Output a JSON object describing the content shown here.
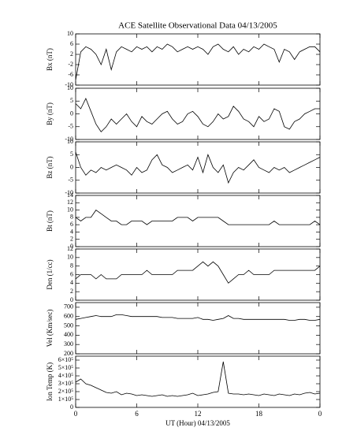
{
  "chart_data": [
    {
      "type": "line",
      "title": "ACE Satellite Observational Data   04/13/2005",
      "ylabel": "Bx (nT)",
      "color": "#000000",
      "xlim": [
        0,
        24
      ],
      "ylim": [
        -10,
        10
      ],
      "yticks": [
        -10,
        -6,
        -2,
        2,
        6,
        10
      ],
      "x": [
        0,
        0.5,
        1,
        1.5,
        2,
        2.5,
        3,
        3.5,
        4,
        4.5,
        5,
        5.5,
        6,
        6.5,
        7,
        7.5,
        8,
        8.5,
        9,
        9.5,
        10,
        10.5,
        11,
        11.5,
        12,
        12.5,
        13,
        13.5,
        14,
        14.5,
        15,
        15.5,
        16,
        16.5,
        17,
        17.5,
        18,
        18.5,
        19,
        19.5,
        20,
        20.5,
        21,
        21.5,
        22,
        22.5,
        23,
        23.5,
        24
      ],
      "values": [
        -8,
        3,
        5,
        4,
        2,
        -2,
        4,
        -4,
        3,
        5,
        4,
        3,
        5,
        4,
        5,
        3,
        5,
        4,
        6,
        5,
        3,
        4,
        5,
        4,
        5,
        4,
        2,
        5,
        6,
        4,
        3,
        5,
        2,
        4,
        3,
        5,
        4,
        6,
        5,
        4,
        -1,
        4,
        3,
        0,
        3,
        4,
        5,
        5,
        3
      ]
    },
    {
      "type": "line",
      "ylabel": "By (nT)",
      "color": "#000000",
      "xlim": [
        0,
        24
      ],
      "ylim": [
        -10,
        10
      ],
      "yticks": [
        -10,
        -5,
        0,
        5,
        10
      ],
      "x": [
        0,
        0.5,
        1,
        1.5,
        2,
        2.5,
        3,
        3.5,
        4,
        4.5,
        5,
        5.5,
        6,
        6.5,
        7,
        7.5,
        8,
        8.5,
        9,
        9.5,
        10,
        10.5,
        11,
        11.5,
        12,
        12.5,
        13,
        13.5,
        14,
        14.5,
        15,
        15.5,
        16,
        16.5,
        17,
        17.5,
        18,
        18.5,
        19,
        19.5,
        20,
        20.5,
        21,
        21.5,
        22,
        22.5,
        23,
        23.5,
        24
      ],
      "values": [
        4,
        2,
        6,
        1,
        -4,
        -7,
        -5,
        -2,
        -4,
        -2,
        0,
        -3,
        -5,
        -1,
        -3,
        -4,
        -2,
        0,
        1,
        -2,
        -4,
        -3,
        0,
        1,
        -1,
        -4,
        -5,
        -3,
        0,
        -2,
        -1,
        3,
        1,
        -2,
        -3,
        -5,
        -1,
        -3,
        -2,
        2,
        1,
        -5,
        -6,
        -3,
        -2,
        0,
        1,
        2,
        2
      ]
    },
    {
      "type": "line",
      "ylabel": "Bz (nT)",
      "color": "#000000",
      "xlim": [
        0,
        24
      ],
      "ylim": [
        -10,
        10
      ],
      "yticks": [
        -10,
        -5,
        0,
        5,
        10
      ],
      "x": [
        0,
        0.5,
        1,
        1.5,
        2,
        2.5,
        3,
        3.5,
        4,
        4.5,
        5,
        5.5,
        6,
        6.5,
        7,
        7.5,
        8,
        8.5,
        9,
        9.5,
        10,
        10.5,
        11,
        11.5,
        12,
        12.5,
        13,
        13.5,
        14,
        14.5,
        15,
        15.5,
        16,
        16.5,
        17,
        17.5,
        18,
        18.5,
        19,
        19.5,
        20,
        20.5,
        21,
        21.5,
        22,
        22.5,
        23,
        23.5,
        24
      ],
      "values": [
        6,
        0,
        -3,
        -1,
        -2,
        0,
        -1,
        0,
        1,
        0,
        -1,
        -3,
        0,
        -2,
        -1,
        3,
        5,
        1,
        0,
        -2,
        -1,
        0,
        1,
        -1,
        4,
        -2,
        5,
        0,
        -2,
        1,
        -6,
        -2,
        0,
        -1,
        1,
        3,
        0,
        -1,
        -2,
        0,
        -1,
        0,
        -2,
        -1,
        0,
        1,
        2,
        3,
        4
      ]
    },
    {
      "type": "line",
      "ylabel": "Bt (nT)",
      "color": "#000000",
      "xlim": [
        0,
        24
      ],
      "ylim": [
        0,
        14
      ],
      "yticks": [
        0,
        2,
        4,
        6,
        8,
        10,
        12,
        14
      ],
      "x": [
        0,
        0.5,
        1,
        1.5,
        2,
        2.5,
        3,
        3.5,
        4,
        4.5,
        5,
        5.5,
        6,
        6.5,
        7,
        7.5,
        8,
        8.5,
        9,
        9.5,
        10,
        10.5,
        11,
        11.5,
        12,
        12.5,
        13,
        13.5,
        14,
        14.5,
        15,
        15.5,
        16,
        16.5,
        17,
        17.5,
        18,
        18.5,
        19,
        19.5,
        20,
        20.5,
        21,
        21.5,
        22,
        22.5,
        23,
        23.5,
        24
      ],
      "values": [
        8,
        7,
        8,
        8,
        10,
        9,
        8,
        7,
        7,
        6,
        6,
        7,
        7,
        7,
        6,
        7,
        7,
        7,
        7,
        7,
        8,
        8,
        8,
        7,
        8,
        8,
        8,
        8,
        8,
        7,
        6,
        6,
        6,
        6,
        6,
        6,
        6,
        6,
        6,
        7,
        6,
        6,
        6,
        6,
        6,
        6,
        6,
        7,
        6
      ]
    },
    {
      "type": "line",
      "ylabel": "Den (1/cc)",
      "color": "#000000",
      "xlim": [
        0,
        24
      ],
      "ylim": [
        0,
        12
      ],
      "yticks": [
        0,
        2,
        4,
        6,
        8,
        10,
        12
      ],
      "x": [
        0,
        0.5,
        1,
        1.5,
        2,
        2.5,
        3,
        3.5,
        4,
        4.5,
        5,
        5.5,
        6,
        6.5,
        7,
        7.5,
        8,
        8.5,
        9,
        9.5,
        10,
        10.5,
        11,
        11.5,
        12,
        12.5,
        13,
        13.5,
        14,
        14.5,
        15,
        15.5,
        16,
        16.5,
        17,
        17.5,
        18,
        18.5,
        19,
        19.5,
        20,
        20.5,
        21,
        21.5,
        22,
        22.5,
        23,
        23.5,
        24
      ],
      "values": [
        5,
        6,
        6,
        6,
        5,
        6,
        5,
        5,
        5,
        6,
        6,
        6,
        6,
        6,
        7,
        6,
        6,
        6,
        6,
        6,
        7,
        7,
        7,
        7,
        8,
        9,
        8,
        9,
        8,
        6,
        4,
        5,
        6,
        6,
        7,
        6,
        6,
        6,
        6,
        7,
        7,
        7,
        7,
        7,
        7,
        7,
        7,
        7,
        8
      ]
    },
    {
      "type": "line",
      "ylabel": "Vel (Km/sec)",
      "color": "#000000",
      "xlim": [
        0,
        24
      ],
      "ylim": [
        200,
        750
      ],
      "yticks": [
        200,
        300,
        400,
        500,
        600,
        700
      ],
      "x": [
        0,
        0.5,
        1,
        1.5,
        2,
        2.5,
        3,
        3.5,
        4,
        4.5,
        5,
        5.5,
        6,
        6.5,
        7,
        7.5,
        8,
        8.5,
        9,
        9.5,
        10,
        10.5,
        11,
        11.5,
        12,
        12.5,
        13,
        13.5,
        14,
        14.5,
        15,
        15.5,
        16,
        16.5,
        17,
        17.5,
        18,
        18.5,
        19,
        19.5,
        20,
        20.5,
        21,
        21.5,
        22,
        22.5,
        23,
        23.5,
        24
      ],
      "values": [
        570,
        580,
        590,
        600,
        610,
        600,
        600,
        600,
        620,
        620,
        610,
        600,
        600,
        600,
        600,
        600,
        600,
        590,
        590,
        590,
        580,
        580,
        580,
        580,
        590,
        570,
        570,
        560,
        570,
        580,
        610,
        580,
        580,
        570,
        570,
        570,
        570,
        570,
        570,
        570,
        570,
        570,
        560,
        560,
        570,
        570,
        560,
        560,
        570
      ]
    },
    {
      "type": "line",
      "ylabel": "Ion Temp (K)",
      "xlabel": "UT (Hour)   04/13/2005",
      "color": "#000000",
      "xlim": [
        0,
        24
      ],
      "xticks": [
        0,
        6,
        12,
        18,
        {
          "value": 24,
          "label": "0"
        }
      ],
      "ylim": [
        0,
        650000
      ],
      "yticks": [
        0,
        {
          "value": 100000,
          "label": "1×10⁵"
        },
        {
          "value": 200000,
          "label": "2×10⁵"
        },
        {
          "value": 300000,
          "label": "3×10⁵"
        },
        {
          "value": 400000,
          "label": "4×10⁵"
        },
        {
          "value": 500000,
          "label": "5×10⁵"
        },
        {
          "value": 600000,
          "label": "6×10⁵"
        }
      ],
      "x": [
        0,
        0.5,
        1,
        1.5,
        2,
        2.5,
        3,
        3.5,
        4,
        4.5,
        5,
        5.5,
        6,
        6.5,
        7,
        7.5,
        8,
        8.5,
        9,
        9.5,
        10,
        10.5,
        11,
        11.5,
        12,
        12.5,
        13,
        13.5,
        14,
        14.5,
        15,
        15.5,
        16,
        16.5,
        17,
        17.5,
        18,
        18.5,
        19,
        19.5,
        20,
        20.5,
        21,
        21.5,
        22,
        22.5,
        23,
        23.5,
        24
      ],
      "values": [
        320000,
        360000,
        300000,
        280000,
        250000,
        220000,
        190000,
        180000,
        200000,
        160000,
        180000,
        170000,
        150000,
        160000,
        150000,
        140000,
        150000,
        160000,
        140000,
        150000,
        140000,
        150000,
        160000,
        180000,
        150000,
        160000,
        170000,
        190000,
        200000,
        580000,
        180000,
        170000,
        170000,
        160000,
        170000,
        160000,
        150000,
        170000,
        160000,
        150000,
        170000,
        160000,
        150000,
        170000,
        160000,
        180000,
        190000,
        170000,
        180000
      ]
    }
  ]
}
